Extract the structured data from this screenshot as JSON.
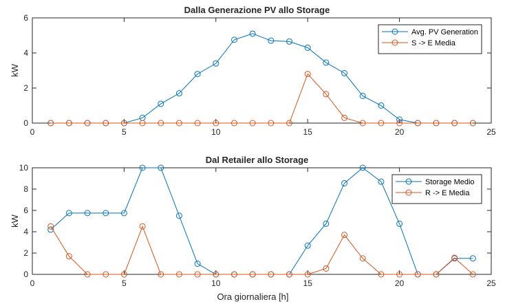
{
  "colors": {
    "blue": "#0072BD",
    "orange": "#D95319",
    "axis": "#262626",
    "background": "#ffffff"
  },
  "chart_data": [
    {
      "type": "line",
      "title": "Dalla Generazione PV allo Storage",
      "xlabel": "",
      "ylabel": "kW",
      "xlim": [
        0,
        25
      ],
      "ylim": [
        0,
        6
      ],
      "xticks": [
        "0",
        "5",
        "10",
        "15",
        "20",
        "25"
      ],
      "yticks": [
        "0",
        "2",
        "4",
        "6"
      ],
      "grid": false,
      "legend": "top-right",
      "x": [
        1,
        2,
        3,
        4,
        5,
        6,
        7,
        8,
        9,
        10,
        11,
        12,
        13,
        14,
        15,
        16,
        17,
        18,
        19,
        20,
        21,
        22,
        23,
        24
      ],
      "series": [
        {
          "name": "Avg. PV Generation",
          "color": "#0072BD",
          "values": [
            0,
            0,
            0,
            0,
            0,
            0.3,
            1.1,
            1.7,
            2.8,
            3.4,
            4.75,
            5.1,
            4.7,
            4.65,
            4.3,
            3.45,
            2.85,
            1.55,
            1.0,
            0.2,
            0,
            0,
            0,
            0
          ]
        },
        {
          "name": "S -> E Media",
          "color": "#D95319",
          "values": [
            0,
            0,
            0,
            0,
            0,
            0,
            0,
            0,
            0,
            0,
            0,
            0,
            0,
            0,
            2.8,
            1.65,
            0.3,
            0,
            0,
            0,
            0,
            0,
            0,
            0
          ]
        }
      ]
    },
    {
      "type": "line",
      "title": "Dal Retailer allo Storage",
      "xlabel": "Ora giornaliera [h]",
      "ylabel": "kW",
      "xlim": [
        0,
        25
      ],
      "ylim": [
        0,
        10
      ],
      "xticks": [
        "0",
        "5",
        "10",
        "15",
        "20",
        "25"
      ],
      "yticks": [
        "0",
        "2",
        "4",
        "6",
        "8",
        "10"
      ],
      "grid": false,
      "legend": "top-right",
      "x": [
        1,
        2,
        3,
        4,
        5,
        6,
        7,
        8,
        9,
        10,
        11,
        12,
        13,
        14,
        15,
        16,
        17,
        18,
        19,
        20,
        21,
        22,
        23,
        24
      ],
      "series": [
        {
          "name": "Storage Medio",
          "color": "#0072BD",
          "values": [
            4.2,
            5.75,
            5.75,
            5.75,
            5.75,
            10,
            10,
            5.5,
            1.0,
            0,
            0,
            0,
            0,
            0,
            2.7,
            4.75,
            8.55,
            10,
            8.7,
            4.75,
            0,
            0,
            1.5,
            1.5
          ]
        },
        {
          "name": "R -> E Media",
          "color": "#D95319",
          "values": [
            4.5,
            1.7,
            0,
            0,
            0,
            4.5,
            0,
            0,
            0,
            0,
            0,
            0,
            0,
            0,
            0,
            0.55,
            3.7,
            1.5,
            0,
            0,
            0,
            0,
            1.55,
            0
          ]
        }
      ]
    }
  ]
}
